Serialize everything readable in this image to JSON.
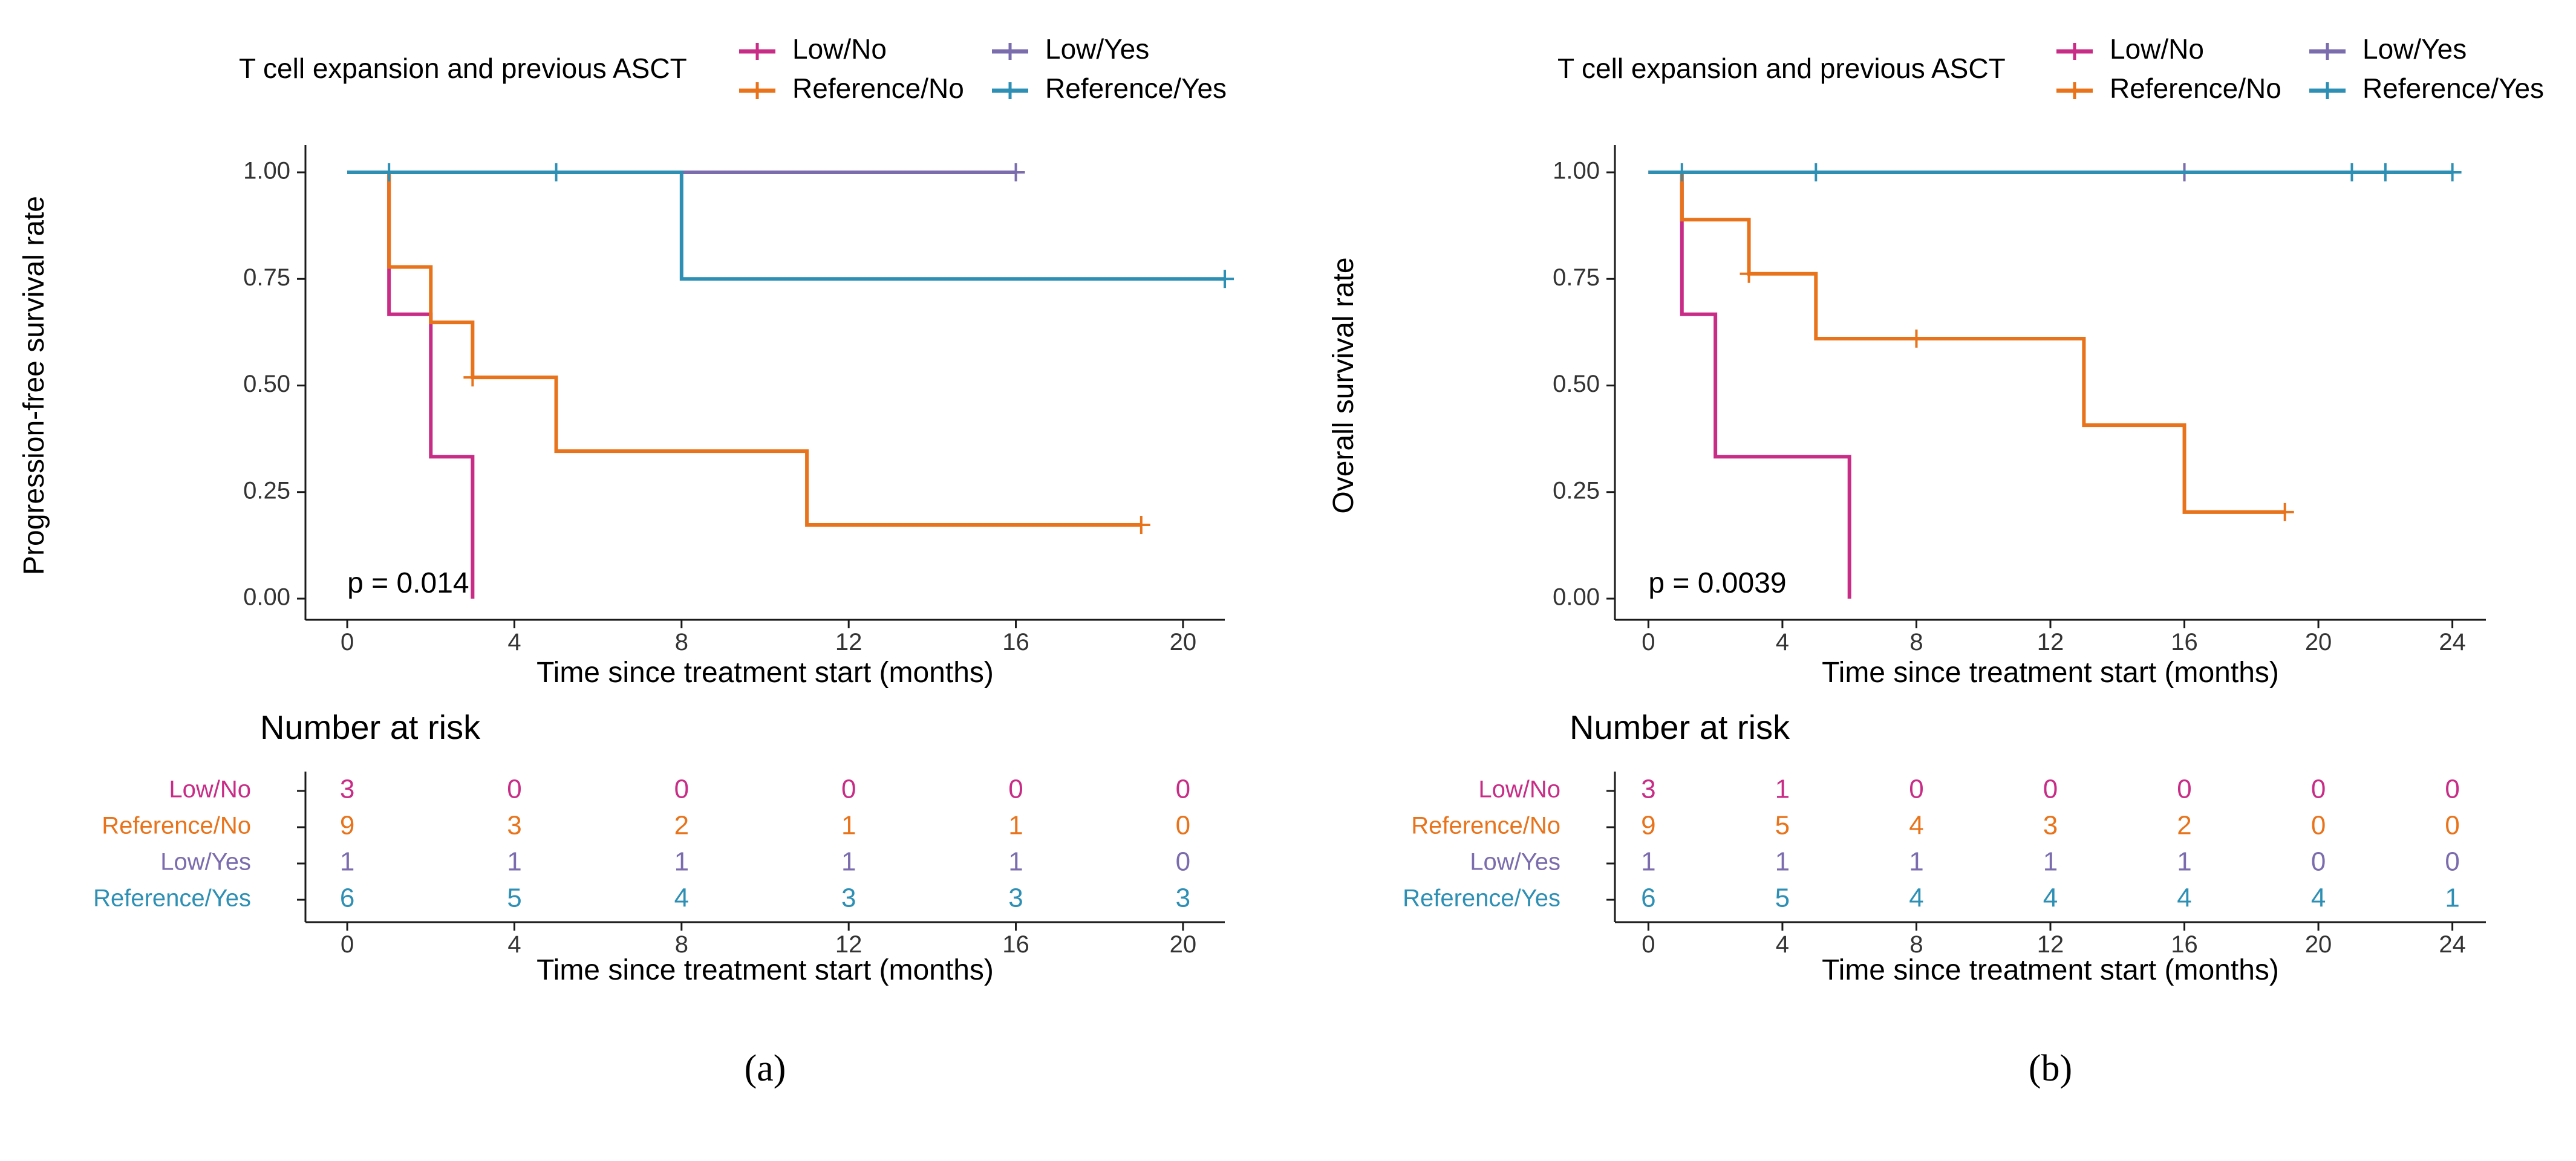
{
  "colors": {
    "Low/No": "#c82c86",
    "Reference/No": "#e8731a",
    "Low/Yes": "#7a6cad",
    "Reference/Yes": "#2d8fb4",
    "axis": "#1a1a1a",
    "text": "#000000"
  },
  "legend_title": "T cell expansion and previous ASCT",
  "groups": [
    "Low/No",
    "Reference/No",
    "Low/Yes",
    "Reference/Yes"
  ],
  "risk_table_title": "Number at risk",
  "chart_data": [
    {
      "type": "line",
      "subtype": "kaplan-meier",
      "panel_label": "(a)",
      "ylabel": "Progression-free survival rate",
      "xlabel": "Time since treatment start (months)",
      "xlim": [
        -1,
        21
      ],
      "ylim": [
        0,
        1
      ],
      "xticks": [
        0,
        4,
        8,
        12,
        16,
        20
      ],
      "yticks": [
        0,
        0.25,
        0.5,
        0.75,
        1.0
      ],
      "ytick_labels": [
        "0.00",
        "0.25",
        "0.50",
        "0.75",
        "1.00"
      ],
      "pvalue_text": "p = 0.014",
      "series": [
        {
          "name": "Low/No",
          "steps": [
            [
              0,
              1.0
            ],
            [
              1,
              0.667
            ],
            [
              2,
              0.333
            ],
            [
              3,
              0.0
            ]
          ],
          "end": 3,
          "censors": []
        },
        {
          "name": "Reference/No",
          "steps": [
            [
              0,
              1.0
            ],
            [
              1,
              0.778
            ],
            [
              2,
              0.648
            ],
            [
              3,
              0.519
            ],
            [
              5,
              0.346
            ],
            [
              11,
              0.173
            ]
          ],
          "end": 19,
          "censors": [
            [
              3,
              0.519
            ],
            [
              19,
              0.173
            ]
          ]
        },
        {
          "name": "Low/Yes",
          "steps": [
            [
              0,
              1.0
            ]
          ],
          "end": 16,
          "censors": [
            [
              16,
              1.0
            ]
          ]
        },
        {
          "name": "Reference/Yes",
          "steps": [
            [
              0,
              1.0
            ],
            [
              8,
              0.75
            ]
          ],
          "end": 21,
          "censors": [
            [
              1,
              1.0
            ],
            [
              5,
              1.0
            ],
            [
              21,
              0.75
            ]
          ]
        }
      ],
      "risk_table": {
        "times": [
          0,
          4,
          8,
          12,
          16,
          20
        ],
        "rows": [
          {
            "name": "Low/No",
            "values": [
              3,
              0,
              0,
              0,
              0,
              0
            ]
          },
          {
            "name": "Reference/No",
            "values": [
              9,
              3,
              2,
              1,
              1,
              0
            ]
          },
          {
            "name": "Low/Yes",
            "values": [
              1,
              1,
              1,
              1,
              1,
              0
            ]
          },
          {
            "name": "Reference/Yes",
            "values": [
              6,
              5,
              4,
              3,
              3,
              3
            ]
          }
        ],
        "xlabel": "Time since treatment start (months)"
      }
    },
    {
      "type": "line",
      "subtype": "kaplan-meier",
      "panel_label": "(b)",
      "ylabel": "Overall survival rate",
      "xlabel": "Time since treatment start (months)",
      "xlim": [
        -1,
        25
      ],
      "ylim": [
        0,
        1
      ],
      "xticks": [
        0,
        4,
        8,
        12,
        16,
        20,
        24
      ],
      "yticks": [
        0,
        0.25,
        0.5,
        0.75,
        1.0
      ],
      "ytick_labels": [
        "0.00",
        "0.25",
        "0.50",
        "0.75",
        "1.00"
      ],
      "pvalue_text": "p = 0.0039",
      "series": [
        {
          "name": "Low/No",
          "steps": [
            [
              0,
              1.0
            ],
            [
              1,
              0.667
            ],
            [
              2,
              0.333
            ],
            [
              6,
              0.0
            ]
          ],
          "end": 6,
          "censors": []
        },
        {
          "name": "Reference/No",
          "steps": [
            [
              0,
              1.0
            ],
            [
              1,
              0.889
            ],
            [
              3,
              0.762
            ],
            [
              5,
              0.61
            ],
            [
              13,
              0.407
            ],
            [
              16,
              0.203
            ]
          ],
          "end": 19,
          "censors": [
            [
              3,
              0.762
            ],
            [
              8,
              0.61
            ],
            [
              19,
              0.203
            ]
          ]
        },
        {
          "name": "Low/Yes",
          "steps": [
            [
              0,
              1.0
            ]
          ],
          "end": 16,
          "censors": [
            [
              16,
              1.0
            ]
          ]
        },
        {
          "name": "Reference/Yes",
          "steps": [
            [
              0,
              1.0
            ]
          ],
          "end": 24,
          "censors": [
            [
              1,
              1.0
            ],
            [
              5,
              1.0
            ],
            [
              21,
              1.0
            ],
            [
              22,
              1.0
            ],
            [
              24,
              1.0
            ]
          ]
        }
      ],
      "risk_table": {
        "times": [
          0,
          4,
          8,
          12,
          16,
          20,
          24
        ],
        "rows": [
          {
            "name": "Low/No",
            "values": [
              3,
              1,
              0,
              0,
              0,
              0,
              0
            ]
          },
          {
            "name": "Reference/No",
            "values": [
              9,
              5,
              4,
              3,
              2,
              0,
              0
            ]
          },
          {
            "name": "Low/Yes",
            "values": [
              1,
              1,
              1,
              1,
              1,
              0,
              0
            ]
          },
          {
            "name": "Reference/Yes",
            "values": [
              6,
              5,
              4,
              4,
              4,
              4,
              1
            ]
          }
        ],
        "xlabel": "Time since treatment start (months)"
      }
    }
  ]
}
